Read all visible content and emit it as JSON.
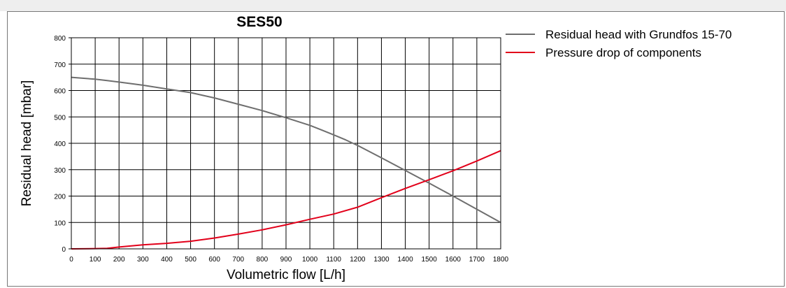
{
  "chart_data": {
    "type": "line",
    "title": "SES50",
    "xlabel": "Volumetric flow [L/h]",
    "ylabel": "Residual head [mbar]",
    "xlim": [
      0,
      1800
    ],
    "ylim": [
      0,
      800
    ],
    "x_ticks": [
      0,
      100,
      200,
      300,
      400,
      500,
      600,
      700,
      800,
      900,
      1000,
      1100,
      1200,
      1300,
      1400,
      1500,
      1600,
      1700,
      1800
    ],
    "y_ticks": [
      0,
      100,
      200,
      300,
      400,
      500,
      600,
      700,
      800
    ],
    "grid": true,
    "legend_position": "right",
    "series": [
      {
        "name": "Residual head with Grundfos 15-70",
        "color": "#6e6e6e",
        "x": [
          0,
          100,
          150,
          200,
          300,
          400,
          500,
          600,
          700,
          800,
          900,
          1000,
          1050,
          1100,
          1150,
          1200,
          1300,
          1400,
          1500,
          1600,
          1700,
          1800
        ],
        "y": [
          650,
          643,
          638,
          632,
          620,
          606,
          592,
          572,
          548,
          524,
          497,
          468,
          450,
          432,
          413,
          392,
          345,
          297,
          249,
          200,
          150,
          100
        ]
      },
      {
        "name": "Pressure drop of components",
        "color": "#e2001a",
        "x": [
          0,
          100,
          150,
          200,
          300,
          400,
          500,
          600,
          700,
          800,
          900,
          1000,
          1100,
          1200,
          1300,
          1400,
          1500,
          1600,
          1700,
          1800
        ],
        "y": [
          0,
          1,
          2,
          7,
          15,
          21,
          29,
          41,
          56,
          72,
          91,
          112,
          132,
          158,
          194,
          229,
          262,
          296,
          333,
          372
        ]
      }
    ]
  }
}
